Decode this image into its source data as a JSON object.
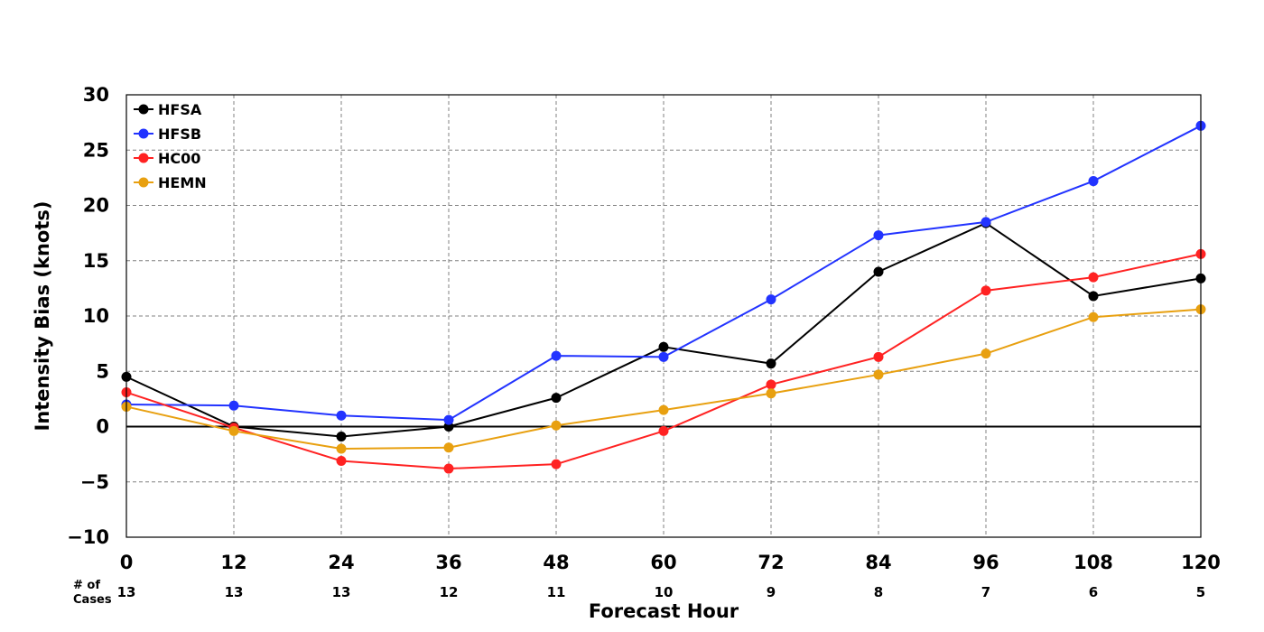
{
  "chart_data": {
    "type": "line",
    "xlabel": "Forecast Hour",
    "ylabel": "Intensity Bias (knots)",
    "xlim": [
      0,
      120
    ],
    "ylim": [
      -10,
      30
    ],
    "x_ticks": [
      0,
      12,
      24,
      36,
      48,
      60,
      72,
      84,
      96,
      108,
      120
    ],
    "y_ticks": [
      -10,
      -5,
      0,
      5,
      10,
      15,
      20,
      25,
      30
    ],
    "x_tick_labels": [
      "0",
      "12",
      "24",
      "36",
      "48",
      "60",
      "72",
      "84",
      "96",
      "108",
      "120"
    ],
    "y_tick_labels": [
      "−10",
      "−5",
      "0",
      "5",
      "10",
      "15",
      "20",
      "25",
      "30"
    ],
    "grid": true,
    "legend_position": "top-left",
    "x": [
      0,
      12,
      24,
      36,
      48,
      60,
      72,
      84,
      96,
      108,
      120
    ],
    "series": [
      {
        "name": "HFSA",
        "color": "#000000",
        "values": [
          4.5,
          0.0,
          -0.9,
          0.0,
          2.6,
          7.2,
          5.7,
          14.0,
          18.4,
          11.8,
          13.4
        ]
      },
      {
        "name": "HFSB",
        "color": "#2233ff",
        "values": [
          2.0,
          1.9,
          1.0,
          0.6,
          6.4,
          6.3,
          11.5,
          17.3,
          18.5,
          22.2,
          27.2
        ]
      },
      {
        "name": "HC00",
        "color": "#ff2222",
        "values": [
          3.1,
          -0.1,
          -3.1,
          -3.8,
          -3.4,
          -0.4,
          3.8,
          6.3,
          12.3,
          13.5,
          15.6
        ]
      },
      {
        "name": "HEMN",
        "color": "#e8a010",
        "values": [
          1.8,
          -0.4,
          -2.0,
          -1.9,
          0.1,
          1.5,
          3.0,
          4.7,
          6.6,
          9.9,
          10.6
        ]
      }
    ],
    "cases_label": [
      "# of",
      "Cases"
    ],
    "cases": [
      "13",
      "13",
      "13",
      "12",
      "11",
      "10",
      "9",
      "8",
      "7",
      "6",
      "5"
    ]
  }
}
